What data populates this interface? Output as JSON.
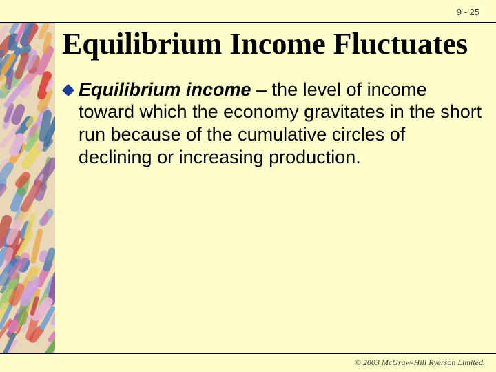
{
  "page_number": "9 - 25",
  "title": "Equilibrium Income Fluctuates",
  "bullet": {
    "lead": "Equilibrium income",
    "rest": " – the level of income toward which the economy gravitates in the short run because of the cumulative circles of declining or increasing production.",
    "diamond_color": "#1a3c9c"
  },
  "copyright": "© 2003 McGraw-Hill Ryerson Limited.",
  "colors": {
    "background": "#ffffcc",
    "rule": "#000000"
  },
  "sidebar_palette": [
    "#d9463a",
    "#e8a23c",
    "#4a7ab8",
    "#8c5aa8",
    "#6aa84f",
    "#d97bb0",
    "#e6d66a",
    "#3d6fa3",
    "#c05050",
    "#f0c27a",
    "#7aa3d1",
    "#c9a0dc",
    "#9cc97a",
    "#e7b8d4"
  ]
}
